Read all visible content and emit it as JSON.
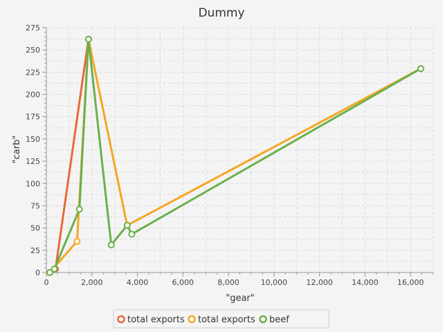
{
  "chart_data": {
    "type": "line",
    "title": "Dummy",
    "xlabel": "\"gear\"",
    "ylabel": "\"carb\"",
    "xlim": [
      0,
      17000
    ],
    "ylim": [
      0,
      275
    ],
    "x_ticks": [
      0,
      2000,
      4000,
      6000,
      8000,
      10000,
      12000,
      14000,
      16000
    ],
    "x_tick_labels": [
      "0",
      "2,000",
      "4,000",
      "6,000",
      "8,000",
      "10,000",
      "12,000",
      "14,000",
      "16,000"
    ],
    "y_ticks": [
      0,
      25,
      50,
      75,
      100,
      125,
      150,
      175,
      200,
      225,
      250,
      275
    ],
    "y_tick_labels": [
      "0",
      "25",
      "50",
      "75",
      "100",
      "125",
      "150",
      "175",
      "200",
      "225",
      "250",
      "275"
    ],
    "grid": true,
    "legend_position": "bottom",
    "series": [
      {
        "name": "total exports",
        "color": "#e8693a",
        "points": [
          [
            150,
            0
          ],
          [
            400,
            4
          ],
          [
            1850,
            262
          ]
        ]
      },
      {
        "name": "total exports",
        "color": "#f5a623",
        "points": [
          [
            150,
            0
          ],
          [
            1350,
            35
          ],
          [
            1850,
            262
          ],
          [
            3550,
            53
          ],
          [
            16450,
            229
          ]
        ]
      },
      {
        "name": "beef",
        "color": "#6ab04c",
        "points": [
          [
            150,
            0
          ],
          [
            350,
            4
          ],
          [
            1450,
            71
          ],
          [
            1850,
            262
          ],
          [
            2850,
            31
          ],
          [
            3550,
            53
          ],
          [
            3750,
            43
          ],
          [
            16450,
            229
          ]
        ]
      }
    ]
  }
}
